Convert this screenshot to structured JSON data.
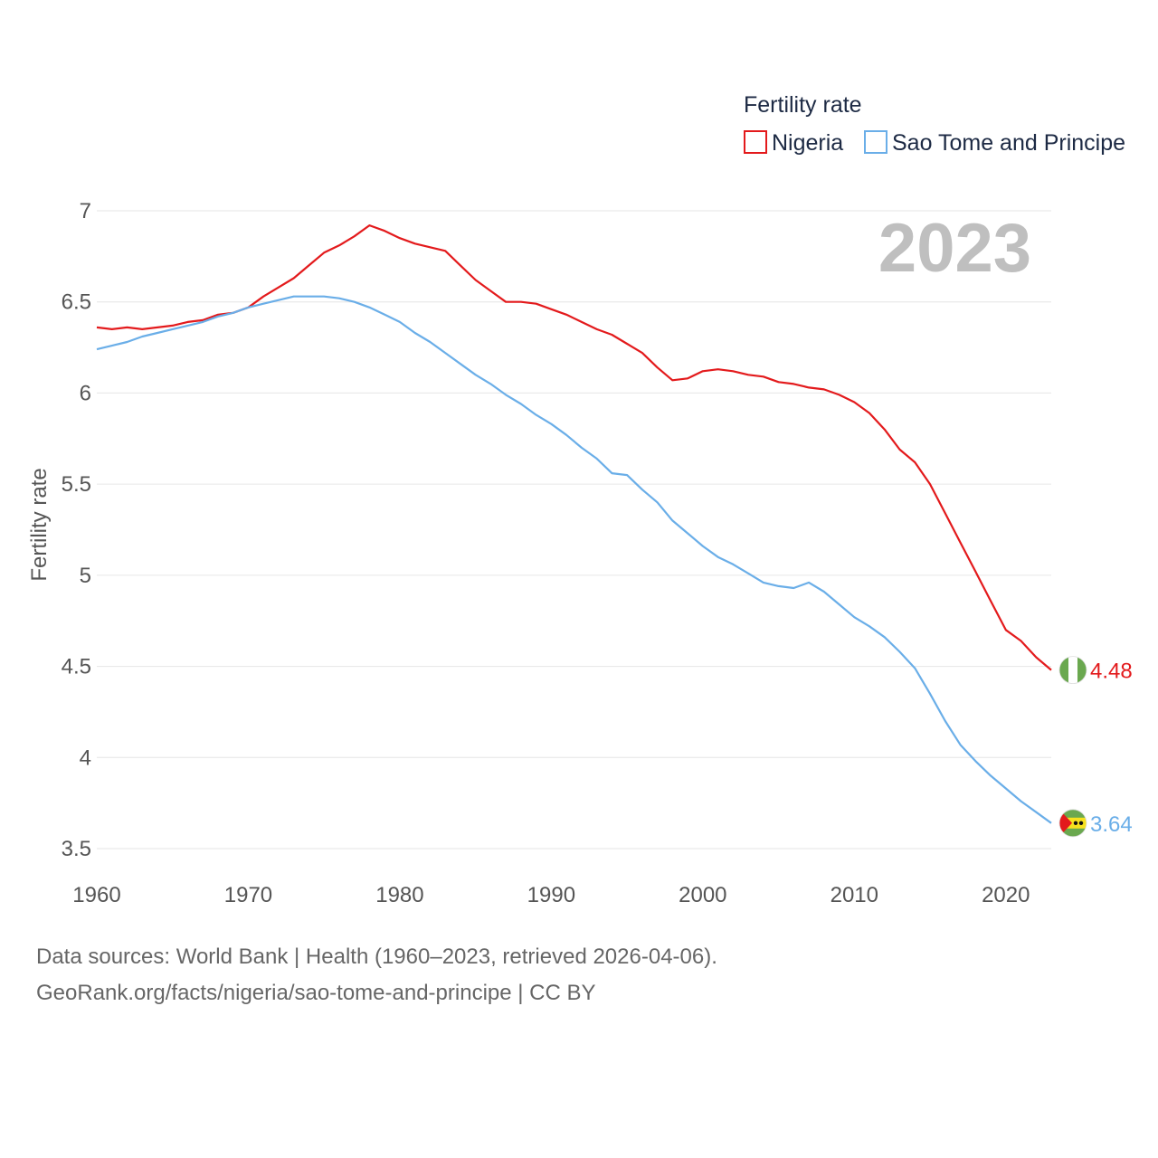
{
  "chart_data": {
    "type": "line",
    "title": "",
    "xlabel": "",
    "ylabel": "Fertility rate",
    "xlim": [
      1960,
      2023
    ],
    "ylim": [
      3.5,
      7
    ],
    "x_ticks": [
      "1960",
      "1970",
      "1980",
      "1990",
      "2000",
      "2010",
      "2020"
    ],
    "y_ticks": [
      "3.5",
      "4",
      "4.5",
      "5",
      "5.5",
      "6",
      "6.5",
      "7"
    ],
    "year_label": "2023",
    "legend": {
      "title": "Fertility rate",
      "position": "top-right",
      "entries": [
        "Nigeria",
        "Sao Tome and Principe"
      ]
    },
    "x": [
      1960,
      1961,
      1962,
      1963,
      1964,
      1965,
      1966,
      1967,
      1968,
      1969,
      1970,
      1971,
      1972,
      1973,
      1974,
      1975,
      1976,
      1977,
      1978,
      1979,
      1980,
      1981,
      1982,
      1983,
      1984,
      1985,
      1986,
      1987,
      1988,
      1989,
      1990,
      1991,
      1992,
      1993,
      1994,
      1995,
      1996,
      1997,
      1998,
      1999,
      2000,
      2001,
      2002,
      2003,
      2004,
      2005,
      2006,
      2007,
      2008,
      2009,
      2010,
      2011,
      2012,
      2013,
      2014,
      2015,
      2016,
      2017,
      2018,
      2019,
      2020,
      2021,
      2022,
      2023
    ],
    "series": [
      {
        "name": "Nigeria",
        "color": "#e31a1c",
        "end_label": "4.48",
        "flag": "nigeria-flag",
        "values": [
          6.36,
          6.35,
          6.36,
          6.35,
          6.36,
          6.37,
          6.39,
          6.4,
          6.43,
          6.44,
          6.47,
          6.53,
          6.58,
          6.63,
          6.7,
          6.77,
          6.81,
          6.86,
          6.92,
          6.89,
          6.85,
          6.82,
          6.8,
          6.78,
          6.7,
          6.62,
          6.56,
          6.5,
          6.5,
          6.49,
          6.46,
          6.43,
          6.39,
          6.35,
          6.32,
          6.27,
          6.22,
          6.14,
          6.07,
          6.08,
          6.12,
          6.13,
          6.12,
          6.1,
          6.09,
          6.06,
          6.05,
          6.03,
          6.02,
          5.99,
          5.95,
          5.89,
          5.8,
          5.69,
          5.62,
          5.5,
          5.34,
          5.18,
          5.02,
          4.86,
          4.7,
          4.64,
          4.55,
          4.48
        ]
      },
      {
        "name": "Sao Tome and Principe",
        "color": "#6aaee8",
        "end_label": "3.64",
        "flag": "sao-tome-flag",
        "values": [
          6.24,
          6.26,
          6.28,
          6.31,
          6.33,
          6.35,
          6.37,
          6.39,
          6.42,
          6.44,
          6.47,
          6.49,
          6.51,
          6.53,
          6.53,
          6.53,
          6.52,
          6.5,
          6.47,
          6.43,
          6.39,
          6.33,
          6.28,
          6.22,
          6.16,
          6.1,
          6.05,
          5.99,
          5.94,
          5.88,
          5.83,
          5.77,
          5.7,
          5.64,
          5.56,
          5.55,
          5.47,
          5.4,
          5.3,
          5.23,
          5.16,
          5.1,
          5.06,
          5.01,
          4.96,
          4.94,
          4.93,
          4.96,
          4.91,
          4.84,
          4.77,
          4.72,
          4.66,
          4.58,
          4.49,
          4.35,
          4.2,
          4.07,
          3.98,
          3.9,
          3.83,
          3.76,
          3.7,
          3.64
        ]
      }
    ]
  },
  "footer": {
    "line1": "Data sources: World Bank | Health (1960–2023, retrieved 2026-04-06).",
    "line2": "GeoRank.org/facts/nigeria/sao-tome-and-principe | CC BY"
  }
}
